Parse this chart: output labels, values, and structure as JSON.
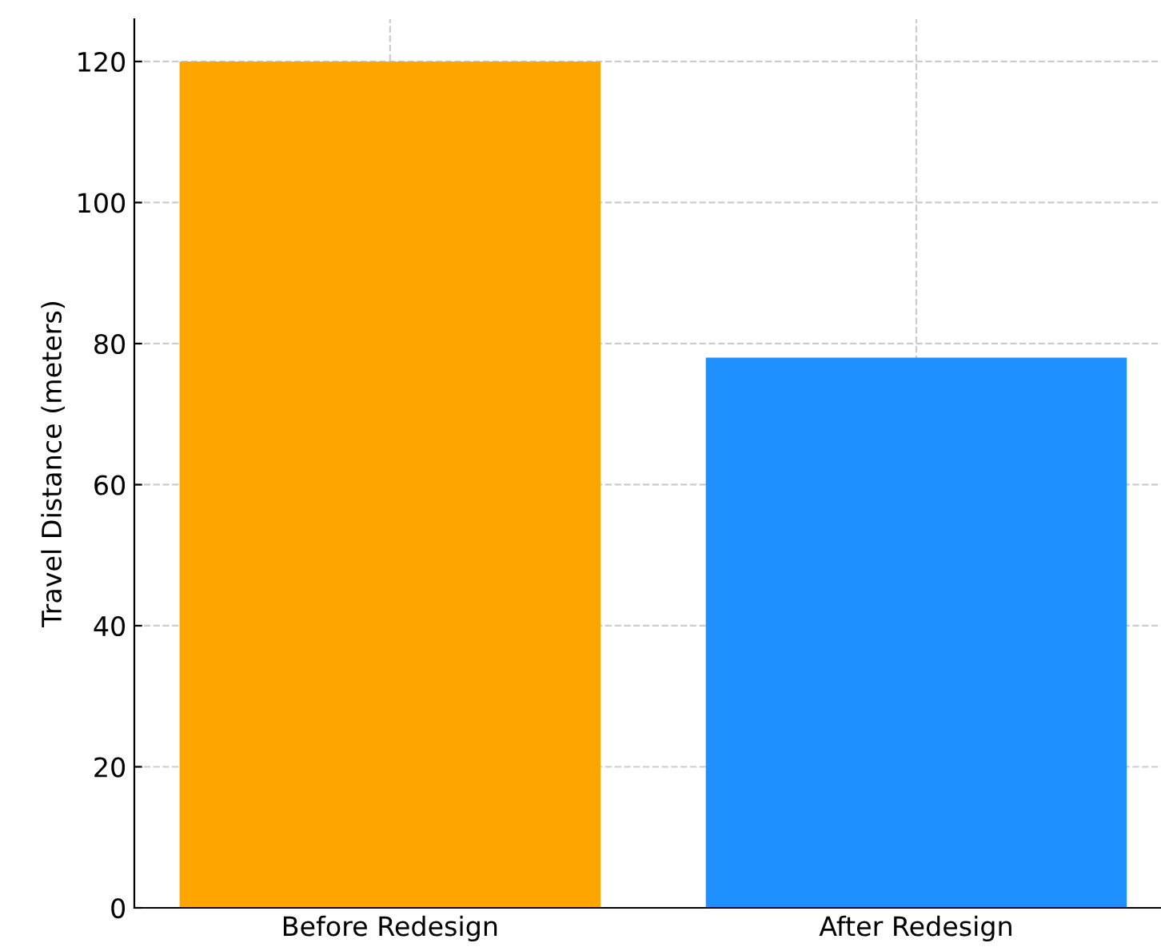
{
  "chart_data": {
    "type": "bar",
    "ylabel": "Travel Distance (meters)",
    "categories": [
      "Before Redesign",
      "After Redesign"
    ],
    "values": [
      120,
      78
    ],
    "colors": [
      "#ffa500",
      "#1e90ff"
    ],
    "ylim": [
      0,
      126
    ],
    "yticks": [
      0,
      20,
      40,
      60,
      80,
      100,
      120
    ],
    "grid": true
  }
}
